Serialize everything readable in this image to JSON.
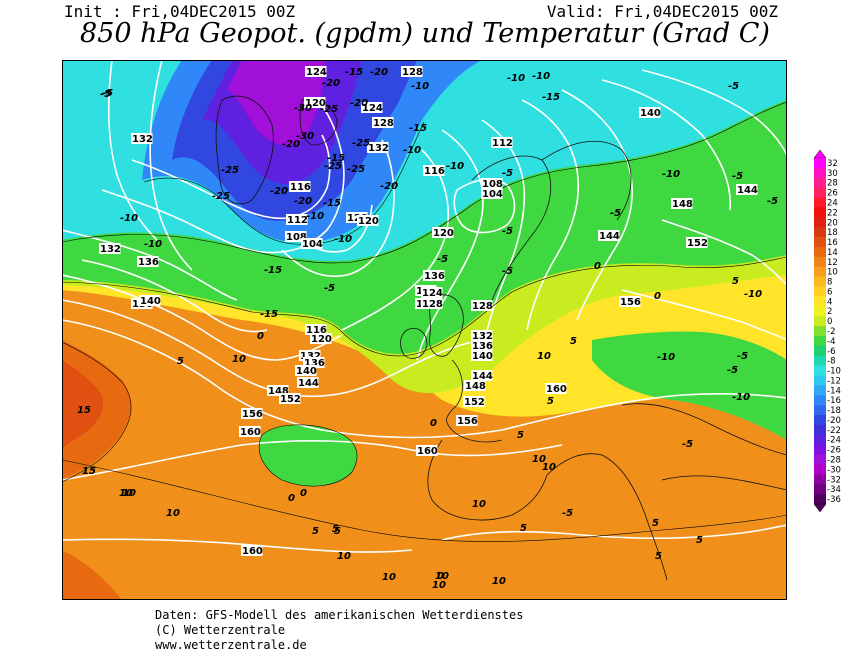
{
  "header": {
    "init_label": "Init : Fri,04DEC2015 00Z",
    "valid_label": "Valid: Fri,04DEC2015 00Z",
    "title": "850 hPa Geopot. (gpdm) und Temperatur (Grad C)"
  },
  "footer": {
    "line1": "Daten: GFS-Modell des amerikanischen Wetterdienstes",
    "line2": "(C) Wetterzentrale",
    "line3": "www.wetterzentrale.de"
  },
  "colorbar": {
    "labels": [
      "32",
      "30",
      "28",
      "26",
      "24",
      "22",
      "20",
      "18",
      "16",
      "14",
      "12",
      "10",
      "8",
      "6",
      "4",
      "2",
      "0",
      "-2",
      "-4",
      "-6",
      "-8",
      "-10",
      "-12",
      "-14",
      "-16",
      "-18",
      "-20",
      "-22",
      "-24",
      "-26",
      "-28",
      "-30",
      "-32",
      "-34",
      "-36"
    ],
    "colors": [
      "#ff00ff",
      "#ff10c8",
      "#ff2090",
      "#ff2060",
      "#ff1a2a",
      "#f01010",
      "#e02010",
      "#d83a10",
      "#e05010",
      "#e86a10",
      "#f08418",
      "#f89c20",
      "#fdb820",
      "#ffd020",
      "#ffe42a",
      "#f2f020",
      "#c8ec20",
      "#80e030",
      "#40d840",
      "#20d070",
      "#20d8b0",
      "#30e0e0",
      "#30c8f0",
      "#30a8f8",
      "#3088f8",
      "#3068f0",
      "#3048e0",
      "#4030d8",
      "#6020e0",
      "#8010e0",
      "#a010d8",
      "#b000c8",
      "#9000a0",
      "#700080",
      "#500060"
    ]
  },
  "map_labels": {
    "geopotential": [
      {
        "v": "124"
      },
      {
        "v": "128"
      },
      {
        "v": "136"
      },
      {
        "v": "120"
      },
      {
        "v": "128"
      },
      {
        "v": "124"
      },
      {
        "v": "132"
      },
      {
        "v": "132"
      },
      {
        "v": "116"
      },
      {
        "v": "112"
      },
      {
        "v": "108"
      },
      {
        "v": "104"
      },
      {
        "v": "116"
      },
      {
        "v": "120"
      },
      {
        "v": "112"
      },
      {
        "v": "108"
      },
      {
        "v": "104"
      },
      {
        "v": "120"
      },
      {
        "v": "124"
      },
      {
        "v": "132"
      },
      {
        "v": "136"
      },
      {
        "v": "128"
      },
      {
        "v": "140"
      },
      {
        "v": "140"
      },
      {
        "v": "144"
      },
      {
        "v": "148"
      },
      {
        "v": "152"
      },
      {
        "v": "144"
      },
      {
        "v": "156"
      },
      {
        "v": "136"
      },
      {
        "v": "116"
      },
      {
        "v": "120"
      },
      {
        "v": "132"
      },
      {
        "v": "136"
      },
      {
        "v": "140"
      },
      {
        "v": "144"
      },
      {
        "v": "148"
      },
      {
        "v": "152"
      },
      {
        "v": "156"
      },
      {
        "v": "160"
      },
      {
        "v": "132"
      },
      {
        "v": "136"
      },
      {
        "v": "140"
      },
      {
        "v": "144"
      },
      {
        "v": "148"
      },
      {
        "v": "152"
      },
      {
        "v": "156"
      },
      {
        "v": "124"
      },
      {
        "v": "128"
      },
      {
        "v": "128"
      },
      {
        "v": "136"
      },
      {
        "v": "160"
      },
      {
        "v": "160"
      },
      {
        "v": "152"
      },
      {
        "v": "156"
      },
      {
        "v": "160"
      },
      {
        "v": "120"
      }
    ],
    "temperature": [
      {
        "v": "-5"
      },
      {
        "v": "-20"
      },
      {
        "v": "-15"
      },
      {
        "v": "-20"
      },
      {
        "v": "-10"
      },
      {
        "v": "-10"
      },
      {
        "v": "-10"
      },
      {
        "v": "-15"
      },
      {
        "v": "-5"
      },
      {
        "v": "-30"
      },
      {
        "v": "-25"
      },
      {
        "v": "-20"
      },
      {
        "v": "-25"
      },
      {
        "v": "-15"
      },
      {
        "v": "-25"
      },
      {
        "v": "-15"
      },
      {
        "v": "-10"
      },
      {
        "v": "-20"
      },
      {
        "v": "-25"
      },
      {
        "v": "-30"
      },
      {
        "v": "-20"
      },
      {
        "v": "-25"
      },
      {
        "v": "-15"
      },
      {
        "v": "-25"
      },
      {
        "v": "-20"
      },
      {
        "v": "-10"
      },
      {
        "v": "-10"
      },
      {
        "v": "-15"
      },
      {
        "v": "-15"
      },
      {
        "v": "-20"
      },
      {
        "v": "-10"
      },
      {
        "v": "-10"
      },
      {
        "v": "-5"
      },
      {
        "v": "-10"
      },
      {
        "v": "-5"
      },
      {
        "v": "-10"
      },
      {
        "v": "-5"
      },
      {
        "v": "-5"
      },
      {
        "v": "-5"
      },
      {
        "v": "-5"
      },
      {
        "v": "0"
      },
      {
        "v": "-10"
      },
      {
        "v": "-5"
      },
      {
        "v": "-10"
      },
      {
        "v": "-5"
      },
      {
        "v": "-5"
      },
      {
        "v": "0"
      },
      {
        "v": "0"
      },
      {
        "v": "0"
      },
      {
        "v": "5"
      },
      {
        "v": "10"
      },
      {
        "v": "10"
      },
      {
        "v": "15"
      },
      {
        "v": "15"
      },
      {
        "v": "5"
      },
      {
        "v": "0"
      },
      {
        "v": "5"
      },
      {
        "v": "10"
      },
      {
        "v": "5"
      },
      {
        "v": "10"
      },
      {
        "v": "10"
      },
      {
        "v": "10"
      },
      {
        "v": "10"
      },
      {
        "v": "5"
      },
      {
        "v": "10"
      },
      {
        "v": "5"
      },
      {
        "v": "-5"
      },
      {
        "v": "0"
      },
      {
        "v": "5"
      },
      {
        "v": "0"
      },
      {
        "v": "5"
      },
      {
        "v": "-5"
      },
      {
        "v": "-10"
      },
      {
        "v": "5"
      },
      {
        "v": "-5"
      },
      {
        "v": "-5"
      },
      {
        "v": "5"
      },
      {
        "v": "5"
      },
      {
        "v": "10"
      },
      {
        "v": "10"
      },
      {
        "v": "10"
      },
      {
        "v": "5"
      },
      {
        "v": "10"
      },
      {
        "v": "15"
      },
      {
        "v": "10"
      }
    ]
  }
}
